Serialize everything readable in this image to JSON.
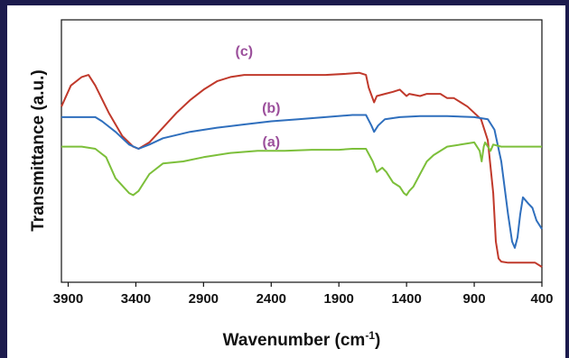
{
  "chart_data": {
    "type": "line",
    "xlabel": "Wavenumber (cm",
    "xlabel_sup": "-1",
    "xlabel_close": ")",
    "ylabel": "Transmittance (a.u.)",
    "x_reversed": true,
    "xlim": [
      3950,
      400
    ],
    "ylim": [
      0,
      100
    ],
    "y_ticks_shown": false,
    "grid": false,
    "x_ticks": [
      3900,
      3400,
      2900,
      2400,
      1900,
      1400,
      900,
      400
    ],
    "series": [
      {
        "name": "(c)",
        "color": "#c0392b",
        "label_at": [
          2600,
          100
        ],
        "points": [
          [
            3950,
            76
          ],
          [
            3880,
            86
          ],
          [
            3800,
            90
          ],
          [
            3750,
            91
          ],
          [
            3700,
            86
          ],
          [
            3600,
            73
          ],
          [
            3500,
            62
          ],
          [
            3420,
            57
          ],
          [
            3380,
            56
          ],
          [
            3300,
            59
          ],
          [
            3200,
            66
          ],
          [
            3100,
            73
          ],
          [
            3000,
            79
          ],
          [
            2900,
            84
          ],
          [
            2800,
            88
          ],
          [
            2700,
            90
          ],
          [
            2600,
            91
          ],
          [
            2400,
            91
          ],
          [
            2200,
            91
          ],
          [
            2000,
            91
          ],
          [
            1850,
            91.5
          ],
          [
            1750,
            92
          ],
          [
            1700,
            91
          ],
          [
            1680,
            85
          ],
          [
            1640,
            78
          ],
          [
            1620,
            81
          ],
          [
            1560,
            82
          ],
          [
            1500,
            83
          ],
          [
            1450,
            84
          ],
          [
            1400,
            81
          ],
          [
            1380,
            82
          ],
          [
            1300,
            81
          ],
          [
            1250,
            82
          ],
          [
            1150,
            82
          ],
          [
            1100,
            80
          ],
          [
            1050,
            80
          ],
          [
            1000,
            78
          ],
          [
            950,
            76
          ],
          [
            900,
            73
          ],
          [
            850,
            70
          ],
          [
            800,
            60
          ],
          [
            760,
            35
          ],
          [
            740,
            12
          ],
          [
            720,
            4
          ],
          [
            700,
            2.5
          ],
          [
            650,
            2
          ],
          [
            550,
            2
          ],
          [
            450,
            2
          ],
          [
            400,
            0
          ]
        ]
      },
      {
        "name": "(b)",
        "color": "#2f6fbd",
        "label_at": [
          2400,
          73
        ],
        "points": [
          [
            3950,
            71
          ],
          [
            3800,
            71
          ],
          [
            3700,
            71
          ],
          [
            3650,
            69
          ],
          [
            3550,
            64
          ],
          [
            3450,
            58
          ],
          [
            3380,
            56
          ],
          [
            3300,
            58
          ],
          [
            3200,
            61
          ],
          [
            3000,
            64
          ],
          [
            2800,
            66
          ],
          [
            2600,
            67.5
          ],
          [
            2400,
            69
          ],
          [
            2200,
            70
          ],
          [
            2000,
            71
          ],
          [
            1800,
            72
          ],
          [
            1700,
            72
          ],
          [
            1660,
            67
          ],
          [
            1640,
            64
          ],
          [
            1610,
            67
          ],
          [
            1560,
            70
          ],
          [
            1450,
            71
          ],
          [
            1300,
            71.5
          ],
          [
            1100,
            71.5
          ],
          [
            900,
            71
          ],
          [
            800,
            70
          ],
          [
            750,
            65
          ],
          [
            700,
            50
          ],
          [
            650,
            25
          ],
          [
            620,
            12
          ],
          [
            600,
            9
          ],
          [
            580,
            14
          ],
          [
            560,
            25
          ],
          [
            540,
            33
          ],
          [
            500,
            30
          ],
          [
            470,
            28
          ],
          [
            440,
            22
          ],
          [
            400,
            18
          ]
        ]
      },
      {
        "name": "(a)",
        "color": "#7cbf3a",
        "label_at": [
          2400,
          57
        ],
        "points": [
          [
            3950,
            57
          ],
          [
            3800,
            57
          ],
          [
            3700,
            56
          ],
          [
            3620,
            52
          ],
          [
            3550,
            42
          ],
          [
            3450,
            35
          ],
          [
            3420,
            34
          ],
          [
            3380,
            36
          ],
          [
            3300,
            44
          ],
          [
            3200,
            49
          ],
          [
            3050,
            50
          ],
          [
            2900,
            52
          ],
          [
            2700,
            54
          ],
          [
            2500,
            55
          ],
          [
            2300,
            55
          ],
          [
            2100,
            55.5
          ],
          [
            1900,
            55.5
          ],
          [
            1800,
            56
          ],
          [
            1700,
            56
          ],
          [
            1650,
            50
          ],
          [
            1620,
            45
          ],
          [
            1580,
            47
          ],
          [
            1550,
            45
          ],
          [
            1500,
            40
          ],
          [
            1450,
            38
          ],
          [
            1420,
            35
          ],
          [
            1400,
            34
          ],
          [
            1380,
            36
          ],
          [
            1350,
            38
          ],
          [
            1300,
            44
          ],
          [
            1250,
            50
          ],
          [
            1200,
            53
          ],
          [
            1100,
            57
          ],
          [
            1000,
            58
          ],
          [
            900,
            59
          ],
          [
            860,
            55
          ],
          [
            845,
            50
          ],
          [
            830,
            57
          ],
          [
            820,
            59
          ],
          [
            800,
            57
          ],
          [
            780,
            55
          ],
          [
            760,
            58
          ],
          [
            700,
            57
          ],
          [
            600,
            57
          ],
          [
            500,
            57
          ],
          [
            400,
            57
          ]
        ]
      }
    ]
  }
}
